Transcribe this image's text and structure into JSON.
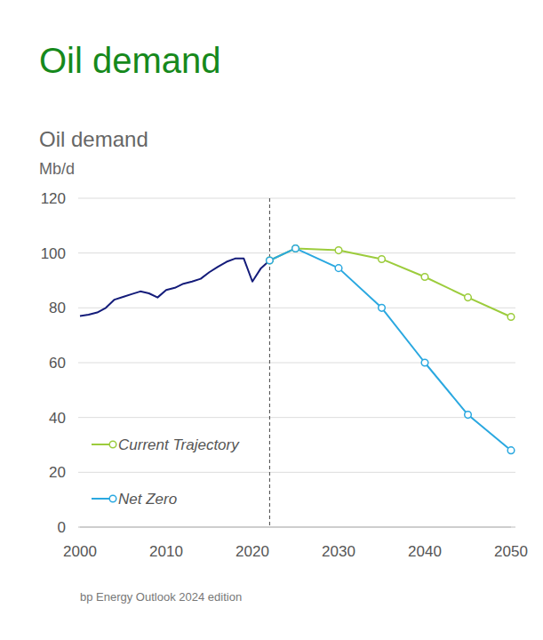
{
  "chart_data": {
    "type": "line",
    "title": "Oil demand",
    "subtitle": "Oil demand",
    "y_label": "Mb/d",
    "source": "bp Energy Outlook 2024 edition",
    "x": [
      2000,
      2001,
      2002,
      2003,
      2004,
      2005,
      2006,
      2007,
      2008,
      2009,
      2010,
      2011,
      2012,
      2013,
      2014,
      2015,
      2016,
      2017,
      2018,
      2019,
      2020,
      2021,
      2022,
      2025,
      2030,
      2035,
      2040,
      2045,
      2050
    ],
    "series": [
      {
        "color": "#141c7a",
        "marker": "none",
        "line_style": "solid",
        "values": [
          77,
          77.5,
          78.3,
          80,
          83,
          84,
          85,
          86,
          85.3,
          83.8,
          86.5,
          87.3,
          88.8,
          89.6,
          90.6,
          93,
          95,
          96.8,
          98,
          98,
          89.6,
          94.5,
          97.3,
          null,
          null,
          null,
          null,
          null,
          null
        ]
      },
      {
        "name": "Current Trajectory",
        "color": "#9ccc3c",
        "marker": "circle",
        "line_style": "solid",
        "values": [
          null,
          null,
          null,
          null,
          null,
          null,
          null,
          null,
          null,
          null,
          null,
          null,
          null,
          null,
          null,
          null,
          null,
          null,
          null,
          null,
          null,
          null,
          97.3,
          101.7,
          101,
          97.8,
          91.3,
          83.8,
          76.7
        ]
      },
      {
        "name": "Net Zero",
        "color": "#2aa8e0",
        "marker": "circle",
        "line_style": "solid",
        "values": [
          null,
          null,
          null,
          null,
          null,
          null,
          null,
          null,
          null,
          null,
          null,
          null,
          null,
          null,
          null,
          null,
          null,
          null,
          null,
          null,
          null,
          null,
          97.3,
          101.7,
          94.5,
          80,
          60,
          41,
          28
        ]
      }
    ],
    "reference_x": 2022,
    "xlim": [
      2000,
      2050
    ],
    "xticks": [
      2000,
      2010,
      2020,
      2030,
      2040,
      2050
    ],
    "ylim": [
      0,
      120
    ],
    "yticks": [
      0,
      20,
      40,
      60,
      80,
      100,
      120
    ],
    "grid": true,
    "legend": "lower left"
  }
}
